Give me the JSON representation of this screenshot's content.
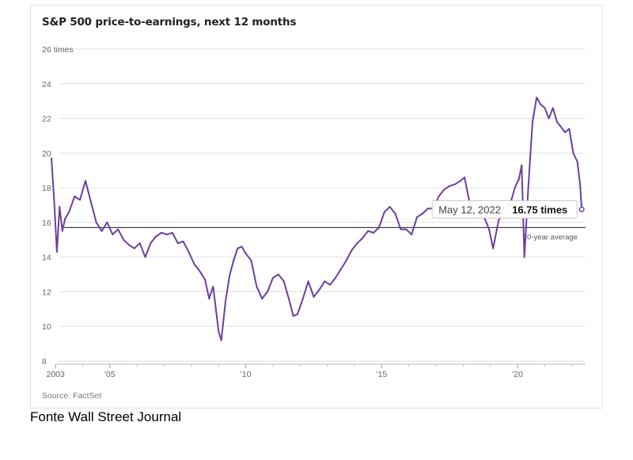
{
  "chart_data": {
    "type": "line",
    "title": "S&P 500 price-to-earnings, next 12 months",
    "y_unit_label": "26 times",
    "ylim": [
      8,
      26
    ],
    "y_ticks": [
      {
        "value": 26,
        "label": "26 times"
      },
      {
        "value": 24,
        "label": "24"
      },
      {
        "value": 22,
        "label": "22"
      },
      {
        "value": 20,
        "label": "20"
      },
      {
        "value": 18,
        "label": "18"
      },
      {
        "value": 16,
        "label": "16"
      },
      {
        "value": 14,
        "label": "14"
      },
      {
        "value": 12,
        "label": "12"
      },
      {
        "value": 10,
        "label": "10"
      },
      {
        "value": 8,
        "label": "8"
      }
    ],
    "xlim": [
      2002.5,
      2022.5
    ],
    "x_ticks": [
      {
        "value": 2003,
        "label": "2003"
      },
      {
        "value": 2005,
        "label": "'05"
      },
      {
        "value": 2010,
        "label": "'10"
      },
      {
        "value": 2015,
        "label": "'15"
      },
      {
        "value": 2020,
        "label": "'20"
      }
    ],
    "minor_x_ticks": [
      2004,
      2006,
      2007,
      2008,
      2009,
      2011,
      2012,
      2013,
      2014,
      2016,
      2017,
      2018,
      2019,
      2021,
      2022
    ],
    "grid": true,
    "series": [
      {
        "color": "#6b3fa0",
        "x": [
          2002.85,
          2002.95,
          2003.05,
          2003.15,
          2003.25,
          2003.35,
          2003.5,
          2003.7,
          2003.9,
          2004.1,
          2004.3,
          2004.5,
          2004.7,
          2004.9,
          2005.1,
          2005.3,
          2005.5,
          2005.7,
          2005.9,
          2006.1,
          2006.3,
          2006.5,
          2006.7,
          2006.9,
          2007.1,
          2007.3,
          2007.5,
          2007.7,
          2007.9,
          2008.1,
          2008.3,
          2008.5,
          2008.65,
          2008.8,
          2008.9,
          2009.0,
          2009.1,
          2009.25,
          2009.4,
          2009.55,
          2009.7,
          2009.85,
          2010.0,
          2010.2,
          2010.4,
          2010.6,
          2010.8,
          2011.0,
          2011.2,
          2011.4,
          2011.6,
          2011.75,
          2011.9,
          2012.1,
          2012.3,
          2012.5,
          2012.7,
          2012.9,
          2013.1,
          2013.3,
          2013.5,
          2013.7,
          2013.9,
          2014.1,
          2014.3,
          2014.5,
          2014.7,
          2014.9,
          2015.1,
          2015.3,
          2015.5,
          2015.7,
          2015.9,
          2016.1,
          2016.3,
          2016.5,
          2016.7,
          2016.9,
          2017.1,
          2017.3,
          2017.5,
          2017.7,
          2017.9,
          2018.05,
          2018.2,
          2018.4,
          2018.6,
          2018.8,
          2018.95,
          2019.1,
          2019.3,
          2019.5,
          2019.7,
          2019.9,
          2020.05,
          2020.15,
          2020.25,
          2020.4,
          2020.55,
          2020.7,
          2020.85,
          2021.0,
          2021.15,
          2021.3,
          2021.45,
          2021.6,
          2021.75,
          2021.9,
          2022.05,
          2022.2,
          2022.3,
          2022.36
        ],
        "y": [
          19.7,
          17.2,
          14.3,
          16.9,
          15.5,
          16.2,
          16.6,
          17.5,
          17.3,
          18.4,
          17.2,
          16.0,
          15.5,
          16.0,
          15.3,
          15.6,
          15.0,
          14.7,
          14.5,
          14.8,
          14.0,
          14.8,
          15.2,
          15.4,
          15.3,
          15.4,
          14.8,
          14.9,
          14.3,
          13.6,
          13.2,
          12.7,
          11.6,
          12.3,
          11.0,
          9.7,
          9.2,
          11.4,
          12.9,
          13.8,
          14.5,
          14.6,
          14.2,
          13.8,
          12.3,
          11.6,
          12.0,
          12.8,
          13.0,
          12.6,
          11.5,
          10.6,
          10.7,
          11.6,
          12.6,
          11.7,
          12.1,
          12.6,
          12.4,
          12.8,
          13.3,
          13.8,
          14.4,
          14.8,
          15.1,
          15.5,
          15.4,
          15.7,
          16.6,
          16.9,
          16.5,
          15.6,
          15.6,
          15.3,
          16.3,
          16.5,
          16.8,
          16.8,
          17.5,
          17.9,
          18.1,
          18.2,
          18.4,
          18.6,
          17.4,
          16.3,
          16.5,
          16.2,
          15.6,
          14.5,
          16.1,
          16.8,
          16.9,
          18.0,
          18.5,
          19.3,
          14.0,
          18.2,
          21.8,
          23.2,
          22.8,
          22.6,
          22.0,
          22.6,
          21.8,
          21.5,
          21.2,
          21.4,
          20.0,
          19.5,
          18.2,
          16.75
        ]
      }
    ],
    "reference_line": {
      "value": 15.7,
      "label": "20-year average"
    },
    "annotation": {
      "x": 2022.36,
      "y": 16.75,
      "date": "May 12, 2022",
      "value": "16.75 times"
    },
    "source": "Source: FactSet"
  },
  "caption": "Fonte Wall Street Journal"
}
